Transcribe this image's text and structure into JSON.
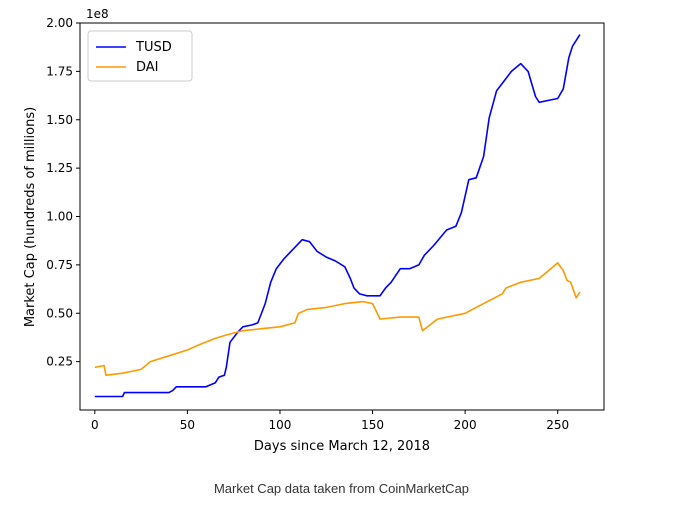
{
  "caption": "Market Cap data taken from CoinMarketCap",
  "chart_data": {
    "type": "line",
    "title": "",
    "xlabel": "Days since March 12, 2018",
    "ylabel": "Market Cap (hundreds of millions)",
    "y_offset_text": "1e8",
    "xlim": [
      -8,
      275
    ],
    "ylim": [
      0.0,
      2.0
    ],
    "xticks": [
      0,
      50,
      100,
      150,
      200,
      250
    ],
    "xtick_labels": [
      "0",
      "50",
      "100",
      "150",
      "200",
      "250"
    ],
    "yticks": [
      0.25,
      0.5,
      0.75,
      1.0,
      1.25,
      1.5,
      1.75,
      2.0
    ],
    "ytick_labels": [
      "0.25",
      "0.50",
      "0.75",
      "1.00",
      "1.25",
      "1.50",
      "1.75",
      "2.00"
    ],
    "legend": "top-left",
    "grid": false,
    "series": [
      {
        "name": "TUSD",
        "color": "#0000ff",
        "points": [
          [
            0,
            0.07
          ],
          [
            15,
            0.07
          ],
          [
            16,
            0.09
          ],
          [
            40,
            0.09
          ],
          [
            42,
            0.1
          ],
          [
            44,
            0.12
          ],
          [
            60,
            0.12
          ],
          [
            65,
            0.14
          ],
          [
            67,
            0.17
          ],
          [
            70,
            0.18
          ],
          [
            71,
            0.22
          ],
          [
            73,
            0.35
          ],
          [
            77,
            0.4
          ],
          [
            80,
            0.43
          ],
          [
            85,
            0.44
          ],
          [
            88,
            0.45
          ],
          [
            92,
            0.55
          ],
          [
            95,
            0.66
          ],
          [
            98,
            0.73
          ],
          [
            102,
            0.78
          ],
          [
            106,
            0.82
          ],
          [
            110,
            0.86
          ],
          [
            112,
            0.88
          ],
          [
            116,
            0.87
          ],
          [
            120,
            0.82
          ],
          [
            125,
            0.79
          ],
          [
            130,
            0.77
          ],
          [
            135,
            0.74
          ],
          [
            138,
            0.68
          ],
          [
            140,
            0.63
          ],
          [
            143,
            0.6
          ],
          [
            147,
            0.59
          ],
          [
            154,
            0.59
          ],
          [
            157,
            0.63
          ],
          [
            160,
            0.66
          ],
          [
            165,
            0.73
          ],
          [
            170,
            0.73
          ],
          [
            175,
            0.75
          ],
          [
            178,
            0.8
          ],
          [
            183,
            0.85
          ],
          [
            190,
            0.93
          ],
          [
            195,
            0.95
          ],
          [
            198,
            1.02
          ],
          [
            202,
            1.19
          ],
          [
            206,
            1.2
          ],
          [
            210,
            1.31
          ],
          [
            213,
            1.51
          ],
          [
            217,
            1.65
          ],
          [
            221,
            1.7
          ],
          [
            225,
            1.75
          ],
          [
            230,
            1.79
          ],
          [
            234,
            1.75
          ],
          [
            238,
            1.62
          ],
          [
            240,
            1.59
          ],
          [
            245,
            1.6
          ],
          [
            250,
            1.61
          ],
          [
            253,
            1.66
          ],
          [
            256,
            1.82
          ],
          [
            258,
            1.88
          ],
          [
            260,
            1.91
          ],
          [
            262,
            1.94
          ]
        ]
      },
      {
        "name": "DAI",
        "color": "#ff9900",
        "points": [
          [
            0,
            0.22
          ],
          [
            5,
            0.23
          ],
          [
            6,
            0.18
          ],
          [
            15,
            0.19
          ],
          [
            25,
            0.21
          ],
          [
            30,
            0.25
          ],
          [
            40,
            0.28
          ],
          [
            50,
            0.31
          ],
          [
            57,
            0.34
          ],
          [
            65,
            0.37
          ],
          [
            72,
            0.39
          ],
          [
            80,
            0.41
          ],
          [
            90,
            0.42
          ],
          [
            100,
            0.43
          ],
          [
            108,
            0.45
          ],
          [
            110,
            0.5
          ],
          [
            115,
            0.52
          ],
          [
            125,
            0.53
          ],
          [
            135,
            0.55
          ],
          [
            145,
            0.56
          ],
          [
            150,
            0.55
          ],
          [
            154,
            0.47
          ],
          [
            165,
            0.48
          ],
          [
            175,
            0.48
          ],
          [
            177,
            0.41
          ],
          [
            185,
            0.47
          ],
          [
            200,
            0.5
          ],
          [
            210,
            0.55
          ],
          [
            220,
            0.6
          ],
          [
            222,
            0.63
          ],
          [
            230,
            0.66
          ],
          [
            240,
            0.68
          ],
          [
            245,
            0.72
          ],
          [
            250,
            0.76
          ],
          [
            253,
            0.72
          ],
          [
            255,
            0.67
          ],
          [
            257,
            0.66
          ],
          [
            260,
            0.58
          ],
          [
            262,
            0.61
          ]
        ]
      }
    ]
  }
}
